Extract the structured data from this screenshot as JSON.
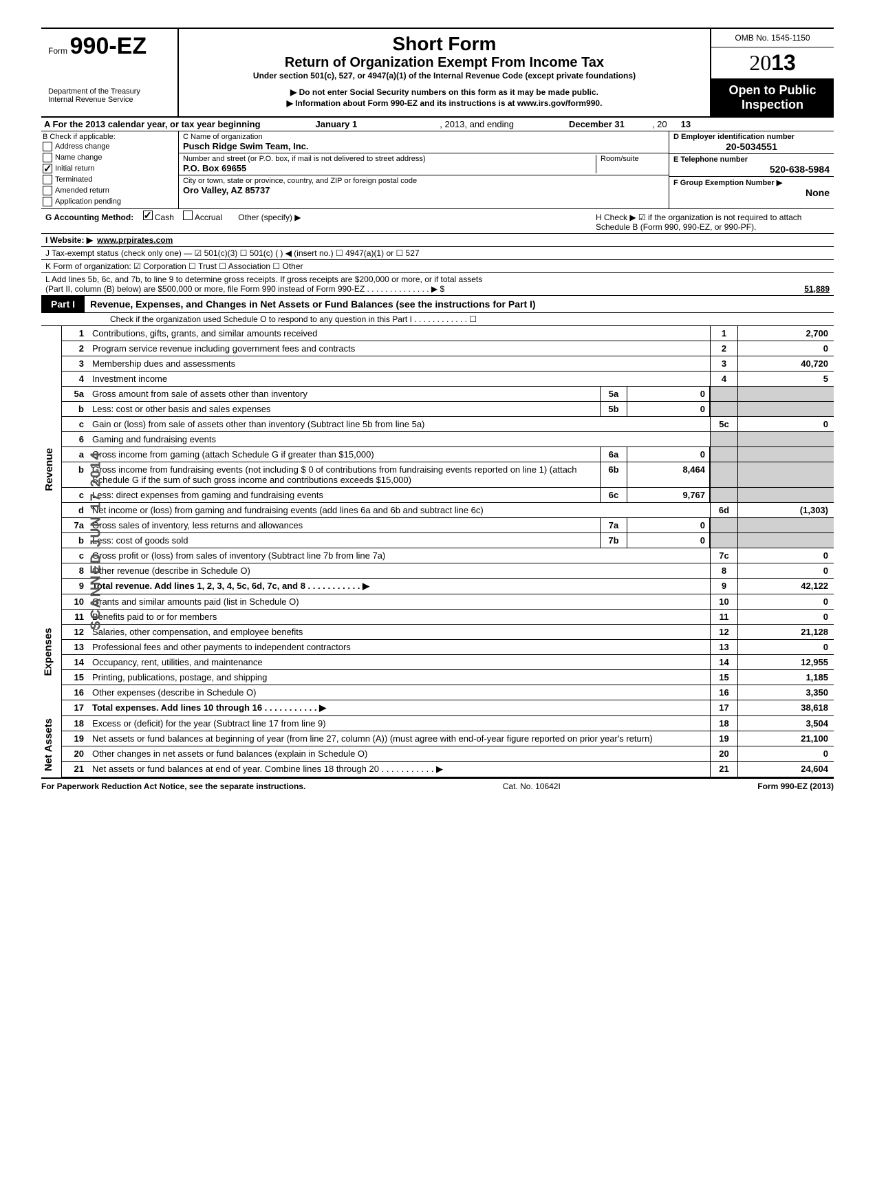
{
  "header": {
    "form_prefix": "Form",
    "form_number": "990-EZ",
    "dept1": "Department of the Treasury",
    "dept2": "Internal Revenue Service",
    "title1": "Short Form",
    "title2": "Return of Organization Exempt From Income Tax",
    "subtitle": "Under section 501(c), 527, or 4947(a)(1) of the Internal Revenue Code (except private foundations)",
    "instr1": "▶ Do not enter Social Security numbers on this form as it may be made public.",
    "instr2": "▶ Information about Form 990-EZ and its instructions is at www.irs.gov/form990.",
    "omb": "OMB No. 1545-1150",
    "year_outline": "20",
    "year_bold": "13",
    "open": "Open to Public Inspection"
  },
  "lineA": {
    "prefix": "A  For the 2013 calendar year, or tax year beginning",
    "begin": "January 1",
    "mid": ", 2013, and ending",
    "end": "December 31",
    "suffix": ", 20",
    "yr": "13"
  },
  "colB": {
    "title": "B  Check if applicable:",
    "items": [
      "Address change",
      "Name change",
      "Initial return",
      "Terminated",
      "Amended return",
      "Application pending"
    ],
    "checked_idx": 2
  },
  "colC": {
    "label1": "C Name of organization",
    "name": "Pusch Ridge Swim Team, Inc.",
    "label2": "Number and street (or P.O. box, if mail is not delivered to street address)",
    "room": "Room/suite",
    "street": "P.O. Box 69655",
    "label3": "City or town, state or province, country, and ZIP or foreign postal code",
    "city": "Oro Valley, AZ  85737"
  },
  "colD": {
    "label": "D Employer identification number",
    "ein": "20-5034551",
    "labelE": "E Telephone number",
    "phone": "520-638-5984",
    "labelF": "F Group Exemption Number ▶",
    "group": "None"
  },
  "lineG": "G  Accounting Method:",
  "g_opts": [
    "Cash",
    "Accrual",
    "Other (specify) ▶"
  ],
  "lineH": "H  Check ▶ ☑ if the organization is not required to attach Schedule B (Form 990, 990-EZ, or 990-PF).",
  "lineI_label": "I  Website: ▶",
  "lineI_val": "www.prpirates.com",
  "lineJ": "J  Tax-exempt status (check only one) — ☑ 501(c)(3)   ☐ 501(c) (      ) ◀ (insert no.) ☐ 4947(a)(1) or   ☐ 527",
  "lineK": "K  Form of organization:   ☑ Corporation    ☐ Trust    ☐ Association    ☐ Other",
  "lineL1": "L  Add lines 5b, 6c, and 7b, to line 9 to determine gross receipts. If gross receipts are $200,000 or more, or if total assets",
  "lineL2": "(Part II, column (B) below) are $500,000 or more, file Form 990 instead of Form 990-EZ . . . . . . . . . . . . . . ▶  $",
  "lineL_val": "51,889",
  "part1": {
    "tab": "Part I",
    "title": "Revenue, Expenses, and Changes in Net Assets or Fund Balances (see the instructions for Part I)",
    "check_line": "Check if the organization used Schedule O to respond to any question in this Part I . . . . . . . . . . . . ☐"
  },
  "side_revenue": "Revenue",
  "side_expenses": "Expenses",
  "side_netassets": "Net Assets",
  "scanned_stamp": "SCANNED JUN 17 2014",
  "lines": [
    {
      "n": "1",
      "t": "Contributions, gifts, grants, and similar amounts received",
      "r": "1",
      "v": "2,700"
    },
    {
      "n": "2",
      "t": "Program service revenue including government fees and contracts",
      "r": "2",
      "v": "0"
    },
    {
      "n": "3",
      "t": "Membership dues and assessments",
      "r": "3",
      "v": "40,720"
    },
    {
      "n": "4",
      "t": "Investment income",
      "r": "4",
      "v": "5"
    },
    {
      "n": "5a",
      "t": "Gross amount from sale of assets other than inventory",
      "mb": "5a",
      "mv": "0",
      "shaded": true
    },
    {
      "n": "b",
      "t": "Less: cost or other basis and sales expenses",
      "mb": "5b",
      "mv": "0",
      "shaded": true
    },
    {
      "n": "c",
      "t": "Gain or (loss) from sale of assets other than inventory (Subtract line 5b from line 5a)",
      "r": "5c",
      "v": "0"
    },
    {
      "n": "6",
      "t": "Gaming and fundraising events",
      "shaded": true
    },
    {
      "n": "a",
      "t": "Gross income from gaming (attach Schedule G if greater than $15,000)",
      "mb": "6a",
      "mv": "0",
      "shaded": true
    },
    {
      "n": "b",
      "t": "Gross income from fundraising events (not including  $                    0 of contributions from fundraising events reported on line 1) (attach Schedule G if the sum of such gross income and contributions exceeds $15,000)",
      "mb": "6b",
      "mv": "8,464",
      "shaded": true
    },
    {
      "n": "c",
      "t": "Less: direct expenses from gaming and fundraising events",
      "mb": "6c",
      "mv": "9,767",
      "shaded": true
    },
    {
      "n": "d",
      "t": "Net income or (loss) from gaming and fundraising events (add lines 6a and 6b and subtract line 6c)",
      "r": "6d",
      "v": "(1,303)"
    },
    {
      "n": "7a",
      "t": "Gross sales of inventory, less returns and allowances",
      "mb": "7a",
      "mv": "0",
      "shaded": true
    },
    {
      "n": "b",
      "t": "Less: cost of goods sold",
      "mb": "7b",
      "mv": "0",
      "shaded": true
    },
    {
      "n": "c",
      "t": "Gross profit or (loss) from sales of inventory (Subtract line 7b from line 7a)",
      "r": "7c",
      "v": "0"
    },
    {
      "n": "8",
      "t": "Other revenue (describe in Schedule O)",
      "r": "8",
      "v": "0"
    },
    {
      "n": "9",
      "t": "Total revenue. Add lines 1, 2, 3, 4, 5c, 6d, 7c, and 8",
      "r": "9",
      "v": "42,122",
      "bold": true,
      "arrow": true
    },
    {
      "n": "10",
      "t": "Grants and similar amounts paid (list in Schedule O)",
      "r": "10",
      "v": "0"
    },
    {
      "n": "11",
      "t": "Benefits paid to or for members",
      "r": "11",
      "v": "0"
    },
    {
      "n": "12",
      "t": "Salaries, other compensation, and employee benefits",
      "r": "12",
      "v": "21,128"
    },
    {
      "n": "13",
      "t": "Professional fees and other payments to independent contractors",
      "r": "13",
      "v": "0"
    },
    {
      "n": "14",
      "t": "Occupancy, rent, utilities, and maintenance",
      "r": "14",
      "v": "12,955"
    },
    {
      "n": "15",
      "t": "Printing, publications, postage, and shipping",
      "r": "15",
      "v": "1,185"
    },
    {
      "n": "16",
      "t": "Other expenses (describe in Schedule O)",
      "r": "16",
      "v": "3,350"
    },
    {
      "n": "17",
      "t": "Total expenses. Add lines 10 through 16",
      "r": "17",
      "v": "38,618",
      "bold": true,
      "arrow": true
    },
    {
      "n": "18",
      "t": "Excess or (deficit) for the year (Subtract line 17 from line 9)",
      "r": "18",
      "v": "3,504"
    },
    {
      "n": "19",
      "t": "Net assets or fund balances at beginning of year (from line 27, column (A)) (must agree with end-of-year figure reported on prior year's return)",
      "r": "19",
      "v": "21,100"
    },
    {
      "n": "20",
      "t": "Other changes in net assets or fund balances (explain in Schedule O)",
      "r": "20",
      "v": "0"
    },
    {
      "n": "21",
      "t": "Net assets or fund balances at end of year. Combine lines 18 through 20",
      "r": "21",
      "v": "24,604",
      "arrow": true
    }
  ],
  "footer": {
    "left": "For Paperwork Reduction Act Notice, see the separate instructions.",
    "mid": "Cat. No. 10642I",
    "right": "Form 990-EZ (2013)"
  }
}
